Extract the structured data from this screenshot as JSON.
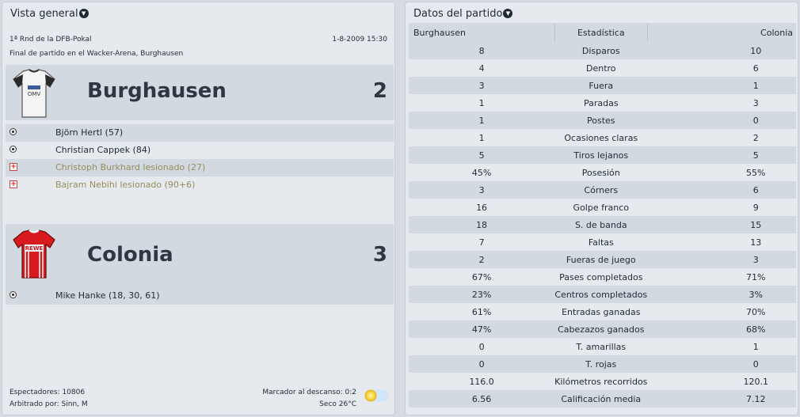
{
  "overview": {
    "title": "Vista general",
    "competition": "1ª Rnd de la DFB-Pokal",
    "date": "1-8-2009 15:30",
    "venue": "Final de partido en el Wacker-Arena, Burghausen",
    "home": {
      "name": "Burghausen",
      "score": "2",
      "events": [
        {
          "type": "goal-icon",
          "text": "Björn Hertl (57)"
        },
        {
          "type": "goal-icon",
          "text": "Christian Cappek (84)"
        },
        {
          "type": "injury-icon",
          "text": "Christoph Burkhard lesionado (27)"
        },
        {
          "type": "injury-icon",
          "text": "Bajram Nebihi lesionado (90+6)"
        }
      ]
    },
    "away": {
      "name": "Colonia",
      "score": "3",
      "events": [
        {
          "type": "goal-icon",
          "text": "Mike Hanke (18, 30, 61)"
        }
      ]
    },
    "attendance": "Espectadores: 10806",
    "referee": "Arbitrado por: Sinn, M",
    "halftime": "Marcador al descanso: 0:2",
    "weather": "Seco 26°C",
    "colors": {
      "home_kit": "#f4f4f4",
      "away_kit": "#d8191d",
      "injury": "#968c5a"
    }
  },
  "stats": {
    "title": "Datos del partido",
    "headers": {
      "home": "Burghausen",
      "stat": "Estadística",
      "away": "Colonia"
    },
    "rows": [
      {
        "home": "8",
        "stat": "Disparos",
        "away": "10"
      },
      {
        "home": "4",
        "stat": "Dentro",
        "away": "6"
      },
      {
        "home": "3",
        "stat": "Fuera",
        "away": "1"
      },
      {
        "home": "1",
        "stat": "Paradas",
        "away": "3"
      },
      {
        "home": "1",
        "stat": "Postes",
        "away": "0"
      },
      {
        "home": "1",
        "stat": "Ocasiones claras",
        "away": "2"
      },
      {
        "home": "5",
        "stat": "Tiros lejanos",
        "away": "5"
      },
      {
        "home": "45%",
        "stat": "Posesión",
        "away": "55%"
      },
      {
        "home": "3",
        "stat": "Córners",
        "away": "6"
      },
      {
        "home": "16",
        "stat": "Golpe franco",
        "away": "9"
      },
      {
        "home": "18",
        "stat": "S. de banda",
        "away": "15"
      },
      {
        "home": "7",
        "stat": "Faltas",
        "away": "13"
      },
      {
        "home": "2",
        "stat": "Fueras de juego",
        "away": "3"
      },
      {
        "home": "67%",
        "stat": "Pases completados",
        "away": "71%"
      },
      {
        "home": "23%",
        "stat": "Centros completados",
        "away": "3%"
      },
      {
        "home": "61%",
        "stat": "Entradas ganadas",
        "away": "70%"
      },
      {
        "home": "47%",
        "stat": "Cabezazos ganados",
        "away": "68%"
      },
      {
        "home": "0",
        "stat": "T. amarillas",
        "away": "1"
      },
      {
        "home": "0",
        "stat": "T. rojas",
        "away": "0"
      },
      {
        "home": "116.0",
        "stat": "Kilómetros recorridos",
        "away": "120.1"
      },
      {
        "home": "6.56",
        "stat": "Calificación media",
        "away": "7.12"
      }
    ]
  }
}
